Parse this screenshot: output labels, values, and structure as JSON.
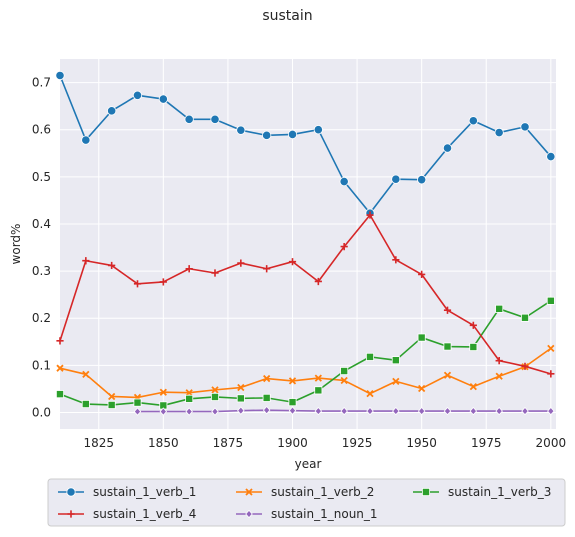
{
  "chart_data": {
    "type": "line",
    "title": "sustain",
    "xlabel": "year",
    "ylabel": "word%",
    "xlim": [
      1810,
      2002
    ],
    "ylim": [
      -0.035,
      0.75
    ],
    "x_ticks": [
      1825,
      1850,
      1875,
      1900,
      1925,
      1950,
      1975,
      2000
    ],
    "y_ticks": [
      0.0,
      0.1,
      0.2,
      0.3,
      0.4,
      0.5,
      0.6,
      0.7
    ],
    "grid": true,
    "legend_position": "bottom",
    "series": [
      {
        "name": "sustain_1_verb_1",
        "color": "#1f77b4",
        "marker": "circle",
        "x": [
          1810,
          1820,
          1830,
          1840,
          1850,
          1860,
          1870,
          1880,
          1890,
          1900,
          1910,
          1920,
          1930,
          1940,
          1950,
          1960,
          1970,
          1980,
          1990,
          2000
        ],
        "values": [
          0.715,
          0.578,
          0.64,
          0.673,
          0.665,
          0.622,
          0.622,
          0.599,
          0.588,
          0.59,
          0.6,
          0.49,
          0.423,
          0.495,
          0.494,
          0.561,
          0.619,
          0.594,
          0.606,
          0.543
        ]
      },
      {
        "name": "sustain_1_verb_2",
        "color": "#ff7f0e",
        "marker": "x",
        "x": [
          1810,
          1820,
          1830,
          1840,
          1850,
          1860,
          1870,
          1880,
          1890,
          1900,
          1910,
          1920,
          1930,
          1940,
          1950,
          1960,
          1970,
          1980,
          1990,
          2000
        ],
        "values": [
          0.094,
          0.081,
          0.034,
          0.032,
          0.043,
          0.042,
          0.048,
          0.053,
          0.072,
          0.067,
          0.073,
          0.068,
          0.04,
          0.066,
          0.051,
          0.079,
          0.055,
          0.077,
          0.097,
          0.136
        ]
      },
      {
        "name": "sustain_1_verb_3",
        "color": "#2ca02c",
        "marker": "square",
        "x": [
          1810,
          1820,
          1830,
          1840,
          1850,
          1860,
          1870,
          1880,
          1890,
          1900,
          1910,
          1920,
          1930,
          1940,
          1950,
          1960,
          1970,
          1980,
          1990,
          2000
        ],
        "values": [
          0.039,
          0.018,
          0.016,
          0.021,
          0.015,
          0.029,
          0.033,
          0.03,
          0.031,
          0.022,
          0.047,
          0.088,
          0.118,
          0.111,
          0.159,
          0.14,
          0.139,
          0.22,
          0.201,
          0.237
        ]
      },
      {
        "name": "sustain_1_verb_4",
        "color": "#d62728",
        "marker": "plus",
        "x": [
          1810,
          1820,
          1830,
          1840,
          1850,
          1860,
          1870,
          1880,
          1890,
          1900,
          1910,
          1920,
          1930,
          1940,
          1950,
          1960,
          1970,
          1980,
          1990,
          2000
        ],
        "values": [
          0.152,
          0.322,
          0.312,
          0.273,
          0.277,
          0.305,
          0.296,
          0.317,
          0.305,
          0.32,
          0.278,
          0.352,
          0.419,
          0.324,
          0.293,
          0.217,
          0.185,
          0.11,
          0.098,
          0.082
        ]
      },
      {
        "name": "sustain_1_noun_1",
        "color": "#9467bd",
        "marker": "diamond",
        "x": [
          1840,
          1850,
          1860,
          1870,
          1880,
          1890,
          1900,
          1910,
          1920,
          1930,
          1940,
          1950,
          1960,
          1970,
          1980,
          1990,
          2000
        ],
        "values": [
          0.002,
          0.002,
          0.002,
          0.002,
          0.004,
          0.005,
          0.004,
          0.003,
          0.003,
          0.003,
          0.003,
          0.003,
          0.003,
          0.003,
          0.003,
          0.003,
          0.003
        ]
      }
    ]
  }
}
